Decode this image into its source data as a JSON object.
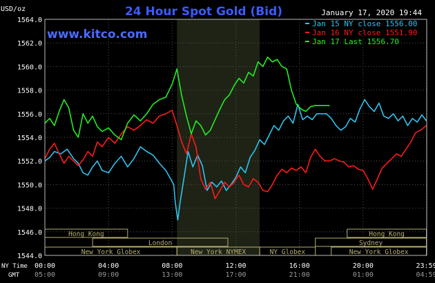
{
  "chart_data": {
    "type": "line",
    "title": "24 Hour Spot Gold (Bid)",
    "brand": "www.kitco.com",
    "timestamp": "January 17, 2020 19:44",
    "ylabel": "USD/oz",
    "ylim": [
      1544.0,
      1564.0
    ],
    "yticks": [
      "1544.0",
      "1546.0",
      "1548.0",
      "1550.0",
      "1552.0",
      "1554.0",
      "1556.0",
      "1558.0",
      "1560.0",
      "1562.0",
      "1564.0"
    ],
    "xlim": [
      0,
      24
    ],
    "xticks": [
      {
        "h": 0,
        "ny": "00:00",
        "gmt": "05:00"
      },
      {
        "h": 4,
        "ny": "04:00",
        "gmt": "09:00"
      },
      {
        "h": 8,
        "ny": "08:00",
        "gmt": "13:00"
      },
      {
        "h": 12,
        "ny": "12:00",
        "gmt": "17:00"
      },
      {
        "h": 16,
        "ny": "16:00",
        "gmt": "21:00"
      },
      {
        "h": 20,
        "ny": "20:00",
        "gmt": "01:00"
      },
      {
        "h": 23.98,
        "ny": "23:59",
        "gmt": "04:59"
      }
    ],
    "xlabels": {
      "ny": "NY Time",
      "gmt": "GMT"
    },
    "shaded_hours": [
      8.3,
      13.5
    ],
    "colors": {
      "grid": "#555555",
      "axis": "#ffffff",
      "title": "#3b5bff",
      "brand": "#4b6bff",
      "session": "#b8b070",
      "shade": "#1e2316"
    },
    "series": [
      {
        "name": "Jan 15 NY close 1556.00",
        "color": "#2ec4f0",
        "x": [
          0.0,
          0.3,
          0.6,
          1.0,
          1.4,
          1.8,
          2.1,
          2.4,
          2.7,
          3.0,
          3.3,
          3.6,
          4.0,
          4.4,
          4.8,
          5.2,
          5.6,
          6.0,
          6.4,
          6.8,
          7.2,
          7.6,
          7.9,
          8.1,
          8.2,
          8.35,
          8.5,
          8.7,
          9.0,
          9.3,
          9.6,
          9.9,
          10.2,
          10.5,
          10.8,
          11.1,
          11.4,
          11.7,
          12.0,
          12.3,
          12.6,
          12.9,
          13.2,
          13.5,
          13.8,
          14.1,
          14.4,
          14.7,
          15.0,
          15.3,
          15.6,
          15.9,
          16.2,
          16.5,
          16.8,
          17.1,
          17.4,
          17.7,
          18.0,
          18.3,
          18.6,
          18.9,
          19.2,
          19.5,
          19.8,
          20.1,
          20.4,
          20.7,
          21.0,
          21.3,
          21.6,
          21.9,
          22.2,
          22.5,
          22.8,
          23.1,
          23.4,
          23.7,
          23.98
        ],
        "values": [
          1552.0,
          1552.3,
          1552.8,
          1552.6,
          1553.0,
          1552.2,
          1551.8,
          1551.0,
          1550.8,
          1551.5,
          1552.0,
          1551.2,
          1551.0,
          1551.8,
          1552.4,
          1551.5,
          1552.2,
          1553.2,
          1552.8,
          1552.5,
          1551.8,
          1551.2,
          1550.5,
          1550.0,
          1548.5,
          1547.0,
          1548.5,
          1550.2,
          1552.8,
          1551.5,
          1552.5,
          1551.6,
          1549.5,
          1550.2,
          1549.8,
          1550.3,
          1549.5,
          1550.0,
          1550.6,
          1551.5,
          1551.0,
          1552.3,
          1552.9,
          1553.8,
          1553.4,
          1554.2,
          1555.0,
          1554.6,
          1555.4,
          1555.8,
          1555.2,
          1556.8,
          1555.5,
          1555.8,
          1555.5,
          1556.0,
          1556.0,
          1556.0,
          1555.6,
          1555.0,
          1554.6,
          1554.9,
          1555.6,
          1555.3,
          1556.4,
          1557.2,
          1556.6,
          1556.2,
          1556.9,
          1555.8,
          1555.6,
          1556.0,
          1555.4,
          1555.8,
          1555.0,
          1555.6,
          1555.3,
          1555.9,
          1555.4
        ]
      },
      {
        "name": "Jan 16 NY close 1551.90",
        "color": "#ff1a1a",
        "x": [
          0.0,
          0.3,
          0.6,
          0.9,
          1.2,
          1.5,
          1.8,
          2.1,
          2.4,
          2.7,
          3.0,
          3.3,
          3.6,
          4.0,
          4.4,
          4.8,
          5.2,
          5.6,
          6.0,
          6.4,
          6.8,
          7.2,
          7.6,
          8.0,
          8.3,
          8.6,
          8.9,
          9.2,
          9.5,
          9.8,
          10.1,
          10.4,
          10.7,
          11.0,
          11.3,
          11.6,
          11.9,
          12.2,
          12.5,
          12.8,
          13.1,
          13.4,
          13.7,
          14.0,
          14.3,
          14.6,
          14.9,
          15.2,
          15.5,
          15.8,
          16.1,
          16.4,
          16.7,
          17.0,
          17.3,
          17.6,
          17.9,
          18.2,
          18.5,
          18.8,
          19.1,
          19.4,
          19.7,
          20.0,
          20.3,
          20.6,
          20.9,
          21.2,
          21.5,
          21.8,
          22.1,
          22.4,
          22.7,
          23.0,
          23.3,
          23.6,
          23.98
        ],
        "values": [
          1552.2,
          1553.0,
          1553.5,
          1552.6,
          1551.8,
          1552.4,
          1552.0,
          1551.6,
          1552.1,
          1552.8,
          1552.4,
          1553.6,
          1553.2,
          1554.0,
          1553.5,
          1554.3,
          1554.9,
          1554.6,
          1555.0,
          1555.5,
          1555.2,
          1555.8,
          1556.0,
          1556.3,
          1555.0,
          1553.6,
          1552.6,
          1554.3,
          1553.2,
          1550.5,
          1549.6,
          1550.2,
          1548.8,
          1549.5,
          1550.2,
          1549.8,
          1550.2,
          1550.8,
          1550.0,
          1549.8,
          1550.5,
          1550.2,
          1549.5,
          1549.4,
          1550.0,
          1550.8,
          1551.3,
          1551.0,
          1551.4,
          1551.2,
          1551.5,
          1551.0,
          1552.3,
          1553.0,
          1552.4,
          1552.0,
          1552.0,
          1552.2,
          1552.0,
          1551.9,
          1551.5,
          1551.6,
          1551.3,
          1551.2,
          1550.5,
          1549.6,
          1550.5,
          1551.4,
          1551.8,
          1552.2,
          1552.6,
          1552.4,
          1553.0,
          1553.6,
          1554.4,
          1554.6,
          1555.0
        ]
      },
      {
        "name": "Jan 17 Last 1556.70",
        "color": "#22ee22",
        "x": [
          0.0,
          0.3,
          0.6,
          0.9,
          1.2,
          1.5,
          1.8,
          2.1,
          2.4,
          2.7,
          3.0,
          3.3,
          3.6,
          4.0,
          4.4,
          4.8,
          5.2,
          5.6,
          6.0,
          6.4,
          6.8,
          7.2,
          7.6,
          8.0,
          8.3,
          8.6,
          8.9,
          9.2,
          9.5,
          9.8,
          10.1,
          10.4,
          10.7,
          11.0,
          11.3,
          11.6,
          11.9,
          12.2,
          12.5,
          12.8,
          13.1,
          13.4,
          13.7,
          14.0,
          14.3,
          14.6,
          14.9,
          15.2,
          15.5,
          15.8,
          16.1,
          16.4,
          16.7,
          17.0,
          17.3,
          17.6,
          17.9
        ],
        "values": [
          1555.2,
          1555.6,
          1555.0,
          1556.2,
          1557.2,
          1556.5,
          1554.6,
          1554.0,
          1556.0,
          1555.2,
          1555.8,
          1554.9,
          1554.5,
          1554.8,
          1554.2,
          1553.8,
          1555.2,
          1555.9,
          1555.4,
          1556.0,
          1556.8,
          1557.2,
          1557.4,
          1558.5,
          1559.8,
          1557.5,
          1555.8,
          1554.3,
          1555.4,
          1555.0,
          1554.2,
          1554.6,
          1555.5,
          1556.4,
          1557.2,
          1557.6,
          1558.4,
          1559.0,
          1558.6,
          1559.5,
          1559.2,
          1560.4,
          1560.0,
          1560.8,
          1560.4,
          1560.6,
          1560.0,
          1559.8,
          1558.0,
          1556.8,
          1556.4,
          1556.2,
          1556.6,
          1556.7,
          1556.7,
          1556.7,
          1556.7
        ]
      }
    ],
    "sessions": [
      {
        "name": "Hong Kong",
        "start": 0.0,
        "end": 5.2,
        "row": 0
      },
      {
        "name": "Hong Kong",
        "start": 19.0,
        "end": 23.98,
        "row": 0
      },
      {
        "name": "London",
        "start": 3.0,
        "end": 11.5,
        "row": 1
      },
      {
        "name": "Sydney",
        "start": 17.0,
        "end": 23.98,
        "row": 1
      },
      {
        "name": "New York Globex",
        "start": 0.0,
        "end": 8.3,
        "row": 2
      },
      {
        "name": "New York NYMEX",
        "start": 8.3,
        "end": 13.5,
        "row": 2
      },
      {
        "name": "NY Globex",
        "start": 13.5,
        "end": 17.0,
        "row": 2
      },
      {
        "name": "New York Globex",
        "start": 18.0,
        "end": 23.98,
        "row": 2
      }
    ]
  }
}
